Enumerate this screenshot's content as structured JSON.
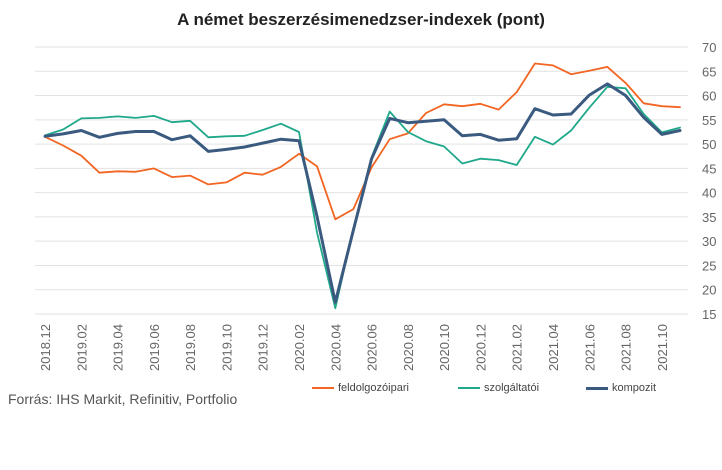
{
  "chart_data": {
    "type": "line",
    "title": "A német beszerzésimenedzser-indexek (pont)",
    "xlabel": "",
    "ylabel": "",
    "ylim": [
      15,
      70
    ],
    "yticks": [
      15,
      20,
      25,
      30,
      35,
      40,
      45,
      50,
      55,
      60,
      65,
      70
    ],
    "x": [
      "2018.12",
      "2019.01",
      "2019.02",
      "2019.03",
      "2019.04",
      "2019.05",
      "2019.06",
      "2019.07",
      "2019.08",
      "2019.09",
      "2019.10",
      "2019.11",
      "2019.12",
      "2020.01",
      "2020.02",
      "2020.03",
      "2020.04",
      "2020.05",
      "2020.06",
      "2020.07",
      "2020.08",
      "2020.09",
      "2020.10",
      "2020.11",
      "2020.12",
      "2021.01",
      "2021.02",
      "2021.03",
      "2021.04",
      "2021.05",
      "2021.06",
      "2021.07",
      "2021.08",
      "2021.09",
      "2021.10",
      "2021.11"
    ],
    "xtick_labels": [
      "2018.12",
      "2019.02",
      "2019.04",
      "2019.06",
      "2019.08",
      "2019.10",
      "2019.12",
      "2020.02",
      "2020.04",
      "2020.06",
      "2020.08",
      "2020.10",
      "2020.12",
      "2021.02",
      "2021.04",
      "2021.06",
      "2021.08",
      "2021.10"
    ],
    "grid": "horizontal",
    "legend_position": "bottom",
    "series": [
      {
        "name": "feldolgozóipari",
        "color": "#f26522",
        "values": [
          51.5,
          49.7,
          47.6,
          44.1,
          44.4,
          44.3,
          45.0,
          43.2,
          43.5,
          41.7,
          42.1,
          44.1,
          43.7,
          45.3,
          48.0,
          45.4,
          34.5,
          36.6,
          45.2,
          51.0,
          52.2,
          56.4,
          58.2,
          57.8,
          58.3,
          57.1,
          60.7,
          66.6,
          66.2,
          64.4,
          65.1,
          65.9,
          62.6,
          58.4,
          57.8,
          57.6
        ]
      },
      {
        "name": "szolgáltatói",
        "color": "#1fa88a",
        "values": [
          51.8,
          53.0,
          55.3,
          55.4,
          55.7,
          55.4,
          55.8,
          54.5,
          54.8,
          51.4,
          51.6,
          51.7,
          52.9,
          54.2,
          52.5,
          31.7,
          16.2,
          32.6,
          47.3,
          56.7,
          52.5,
          50.6,
          49.5,
          46.0,
          47.0,
          46.7,
          45.7,
          51.5,
          49.9,
          52.8,
          57.5,
          61.8,
          61.5,
          56.2,
          52.4,
          53.4
        ]
      },
      {
        "name": "kompozit",
        "color": "#3a5a80",
        "values": [
          51.6,
          52.1,
          52.8,
          51.4,
          52.2,
          52.6,
          52.6,
          50.9,
          51.7,
          48.5,
          48.9,
          49.4,
          50.2,
          51.0,
          50.7,
          35.0,
          17.4,
          32.3,
          47.0,
          55.3,
          54.4,
          54.7,
          55.0,
          51.7,
          52.0,
          50.8,
          51.1,
          57.3,
          56.0,
          56.2,
          60.1,
          62.4,
          60.0,
          55.5,
          52.0,
          52.8
        ]
      }
    ]
  },
  "source": "Forrás: IHS Markit, Refinitiv, Portfolio"
}
